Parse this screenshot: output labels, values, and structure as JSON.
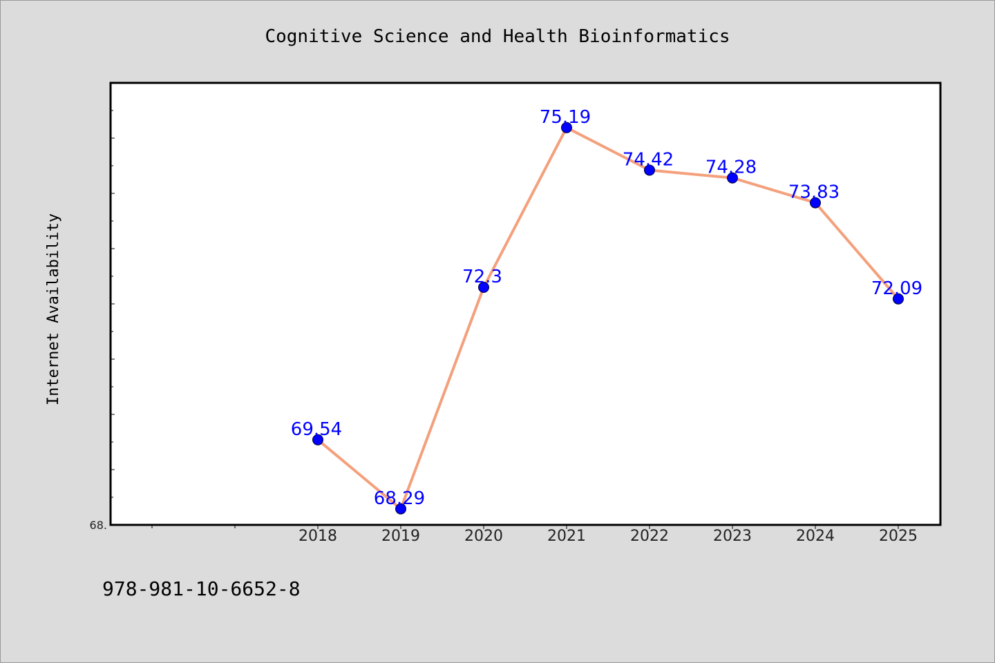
{
  "chart_data": {
    "type": "line",
    "title": "Cognitive Science and Health Bioinformatics",
    "xlabel": "",
    "ylabel": "Internet Availability",
    "categories": [
      "2018",
      "2019",
      "2020",
      "2021",
      "2022",
      "2023",
      "2024",
      "2025"
    ],
    "values": [
      69.54,
      68.29,
      72.3,
      75.19,
      74.42,
      74.28,
      73.83,
      72.09
    ],
    "data_labels": [
      "69.54",
      "68.29",
      "72.3",
      "75.19",
      "74.42",
      "74.28",
      "73.83",
      "72.09"
    ],
    "y_tick_labels": [
      "68."
    ],
    "ylim": [
      68.0,
      76.0
    ],
    "grid": false,
    "legend": "none",
    "colors": {
      "line": "#f4a07c",
      "marker": "#0000ff",
      "data_label": "#0000ff",
      "background": "#dcdcdc",
      "plot_background": "#ffffff"
    }
  },
  "footer": {
    "isbn": "978-981-10-6652-8"
  }
}
